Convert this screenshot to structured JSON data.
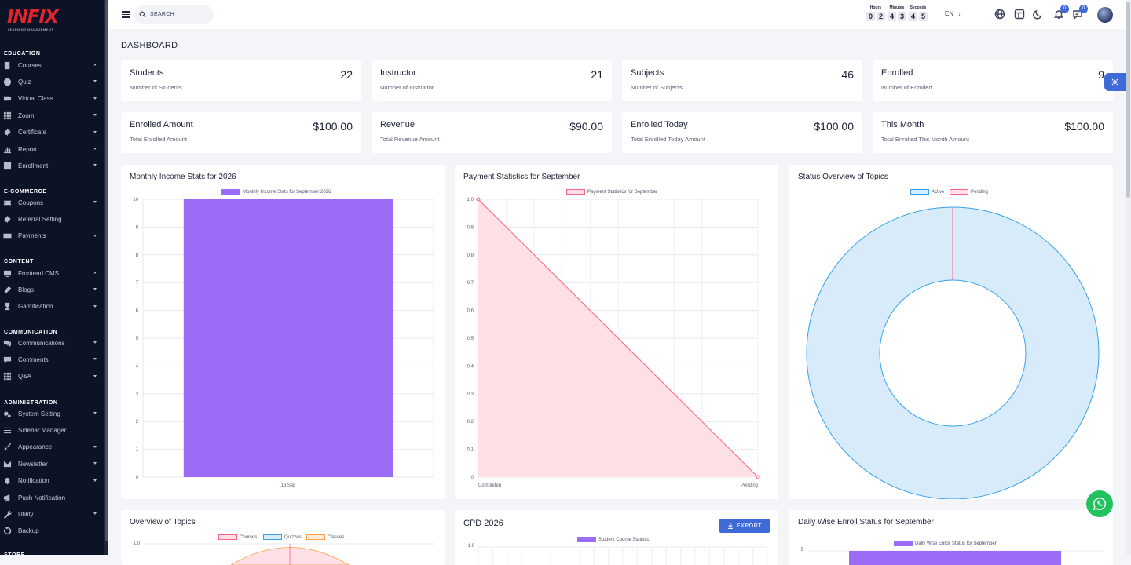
{
  "brand": {
    "logo_text": "INFIX",
    "logo_subtitle": "LEARNING MANAGEMENT"
  },
  "sidebar": {
    "sections": [
      {
        "title": "EDUCATION",
        "items": [
          {
            "label": "Courses",
            "icon": "book-icon",
            "caret": true
          },
          {
            "label": "Quiz",
            "icon": "question-icon",
            "caret": true
          },
          {
            "label": "Virtual Class",
            "icon": "video-icon",
            "caret": true
          },
          {
            "label": "Zoom",
            "icon": "grid-icon",
            "caret": true
          },
          {
            "label": "Certificate",
            "icon": "gear-icon",
            "caret": true
          },
          {
            "label": "Report",
            "icon": "chart-icon",
            "caret": true
          },
          {
            "label": "Enrollment",
            "icon": "enroll-icon",
            "caret": true
          }
        ]
      },
      {
        "title": "E-COMMERCE",
        "items": [
          {
            "label": "Coupons",
            "icon": "coupon-icon",
            "caret": true
          },
          {
            "label": "Referral Setting",
            "icon": "gear-icon",
            "caret": false
          },
          {
            "label": "Payments",
            "icon": "money-icon",
            "caret": true
          }
        ]
      },
      {
        "title": "CONTENT",
        "items": [
          {
            "label": "Frontend CMS",
            "icon": "cms-icon",
            "caret": true
          },
          {
            "label": "Blogs",
            "icon": "edit-icon",
            "caret": true
          },
          {
            "label": "Gamification",
            "icon": "trophy-icon",
            "caret": true
          }
        ]
      },
      {
        "title": "COMMUNICATION",
        "items": [
          {
            "label": "Communications",
            "icon": "chat-icon",
            "caret": true
          },
          {
            "label": "Comments",
            "icon": "comment-icon",
            "caret": true
          },
          {
            "label": "Q&A",
            "icon": "grid-icon",
            "caret": true
          }
        ]
      },
      {
        "title": "ADMINISTRATION",
        "items": [
          {
            "label": "System Setting",
            "icon": "gears-icon",
            "caret": true
          },
          {
            "label": "Sidebar Manager",
            "icon": "list-icon",
            "caret": false
          },
          {
            "label": "Appearance",
            "icon": "brush-icon",
            "caret": true
          },
          {
            "label": "Newsletter",
            "icon": "mail-icon",
            "caret": true
          },
          {
            "label": "Notification",
            "icon": "bell-icon",
            "caret": true
          },
          {
            "label": "Push Notification",
            "icon": "megaphone-icon",
            "caret": false
          },
          {
            "label": "Utility",
            "icon": "wrench-icon",
            "caret": true
          },
          {
            "label": "Backup",
            "icon": "backup-icon",
            "caret": false
          }
        ]
      },
      {
        "title": "STORE",
        "items": []
      }
    ]
  },
  "topbar": {
    "search_placeholder": "SEARCH",
    "timer": [
      {
        "label": "Hours",
        "digits": [
          "0",
          "2"
        ]
      },
      {
        "label": "Minutes",
        "digits": [
          "4",
          "3"
        ]
      },
      {
        "label": "Seconds",
        "digits": [
          "4",
          "5"
        ]
      }
    ],
    "language": "EN",
    "notification_count": "0",
    "message_count": "0"
  },
  "page_title": "DASHBOARD",
  "stats": [
    {
      "title": "Students",
      "subtitle": "Number of Students",
      "value": "22"
    },
    {
      "title": "Instructor",
      "subtitle": "Number of Instructor",
      "value": "21"
    },
    {
      "title": "Subjects",
      "subtitle": "Number of Subjects",
      "value": "46"
    },
    {
      "title": "Enrolled",
      "subtitle": "Number of Enrolled",
      "value": "9"
    },
    {
      "title": "Enrolled Amount",
      "subtitle": "Total Enrolled Amount",
      "value": "$100.00"
    },
    {
      "title": "Revenue",
      "subtitle": "Total Revenue Amount",
      "value": "$90.00"
    },
    {
      "title": "Enrolled Today",
      "subtitle": "Total Enrolled Today Amount",
      "value": "$100.00"
    },
    {
      "title": "This Month",
      "subtitle": "Total Enrolled This Month Amount",
      "value": "$100.00"
    }
  ],
  "cards": {
    "income_title": "Monthly Income Stats for 2026",
    "payment_title": "Payment Statistics for September",
    "status_title": "Status Overview of Topics",
    "overview_title": "Overview of Topics",
    "cpd_title": "CPD 2026",
    "export_label": "EXPORT",
    "daily_title": "Daily Wise Enroll Status for September"
  },
  "colors": {
    "accent": "#3f6ad8",
    "bar": "#9b6df7",
    "pink": "#ff6384",
    "blue": "#36a2eb",
    "orange": "#ff9f40",
    "whatsapp": "#22c35e"
  },
  "chart_data": [
    {
      "type": "bar",
      "categories": [
        "16 Sep"
      ],
      "series": [
        {
          "name": "Monthly Income Stats for September 2026",
          "values": [
            10
          ]
        }
      ],
      "ylim": [
        0,
        10
      ],
      "yticks": [
        0,
        1,
        2,
        3,
        4,
        5,
        6,
        7,
        8,
        9,
        10
      ],
      "color": "#9b6df7"
    },
    {
      "type": "area",
      "categories": [
        "Completed",
        "Pending"
      ],
      "series": [
        {
          "name": "Payment Statistics for September",
          "values": [
            1.0,
            0
          ]
        }
      ],
      "ylim": [
        0,
        1.0
      ],
      "yticks": [
        "0",
        "0.1",
        "0.2",
        "0.3",
        "0.4",
        "0.5",
        "0.6",
        "0.7",
        "0.8",
        "0.9",
        "1.0"
      ],
      "color": "#ff6384"
    },
    {
      "type": "pie",
      "subtype": "doughnut",
      "labels": [
        "Active",
        "Pending"
      ],
      "values": [
        1,
        0
      ],
      "colors": [
        "#36a2eb",
        "#ff6384"
      ]
    },
    {
      "type": "pie",
      "subtype": "polar",
      "labels": [
        "Courses",
        "Quizzes",
        "Classes"
      ],
      "colors": [
        "#ff6384",
        "#36a2eb",
        "#ff9f40"
      ],
      "yticks": [
        "1.0"
      ]
    },
    {
      "type": "bar",
      "series": [
        {
          "name": "Student Course Statistic",
          "values": []
        }
      ],
      "yticks": [
        "1.0"
      ],
      "color": "#9b6df7"
    },
    {
      "type": "bar",
      "series": [
        {
          "name": "Daily Wise Enroll Status for September",
          "values": []
        }
      ],
      "yticks": [
        "9"
      ],
      "color": "#9b6df7"
    }
  ]
}
